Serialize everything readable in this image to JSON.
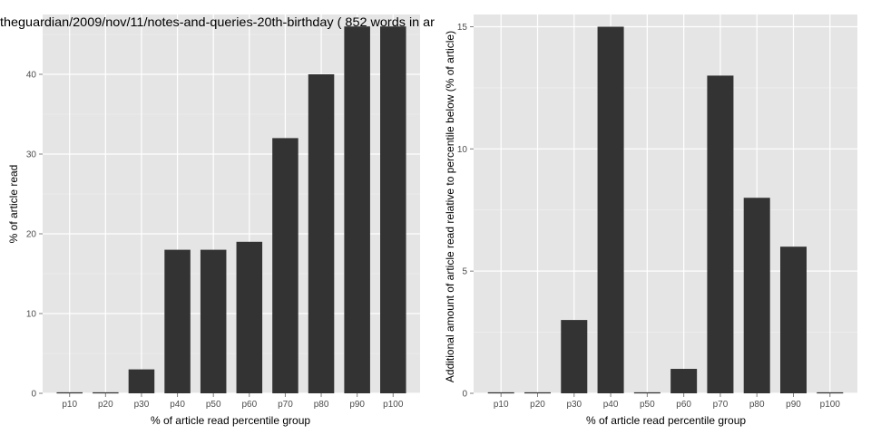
{
  "chart_data": [
    {
      "type": "bar",
      "title": "theguardian/2009/nov/11/notes-and-queries-20th-birthday ( 852 words in ar",
      "xlabel": "% of article read percentile group",
      "ylabel": "% of article read",
      "categories": [
        "p10",
        "p20",
        "p30",
        "p40",
        "p50",
        "p60",
        "p70",
        "p80",
        "p90",
        "p100"
      ],
      "values": [
        0,
        0,
        3,
        18,
        18,
        19,
        32,
        40,
        46,
        46
      ],
      "ylim": [
        0,
        47.5
      ],
      "yticks": [
        0,
        10,
        20,
        30,
        40
      ],
      "grid": true,
      "colors": {
        "bar": "#333333",
        "panel": "#e5e5e5",
        "grid_major": "#ffffff",
        "grid_minor": "#f2f2f2"
      }
    },
    {
      "type": "bar",
      "title": "",
      "xlabel": "% of article read percentile group",
      "ylabel": "Additional amount of article read relative to percentile below (% of article)",
      "categories": [
        "p10",
        "p20",
        "p30",
        "p40",
        "p50",
        "p60",
        "p70",
        "p80",
        "p90",
        "p100"
      ],
      "values": [
        0,
        0,
        3,
        15,
        0,
        1,
        13,
        8,
        6,
        0
      ],
      "ylim": [
        0,
        15.5
      ],
      "yticks": [
        0,
        5,
        10,
        15
      ],
      "grid": true,
      "colors": {
        "bar": "#333333",
        "panel": "#e5e5e5",
        "grid_major": "#ffffff",
        "grid_minor": "#f2f2f2"
      }
    }
  ]
}
